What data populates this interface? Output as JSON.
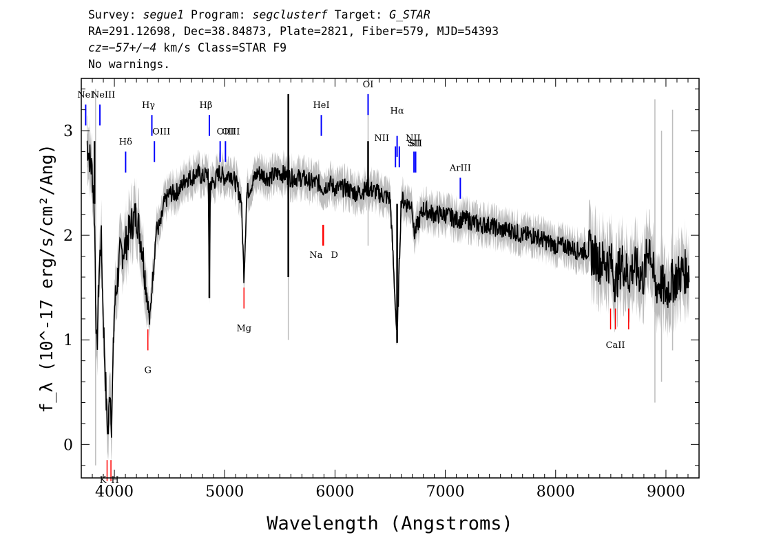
{
  "header": {
    "line1": {
      "survey_label": "Survey:",
      "survey": "segue1",
      "program_label": "Program:",
      "program": "segclusterf",
      "target_label": "Target:",
      "target": "G_STAR"
    },
    "line2": "RA=291.12698, Dec=38.84873, Plate=2821, Fiber=579, MJD=54393",
    "line3": {
      "cz": "cz=−57+/−4",
      "rest": "km/s Class=STAR F9"
    },
    "line4": "No warnings."
  },
  "chart_data": {
    "type": "line",
    "xlabel": "Wavelength (Angstroms)",
    "ylabel": "f_λ (10^-17 erg/s/cm²/Ang)",
    "xlim": [
      3700,
      9300
    ],
    "ylim": [
      -0.32,
      3.5
    ],
    "x_ticks": [
      4000,
      5000,
      6000,
      7000,
      8000,
      9000
    ],
    "y_ticks": [
      0,
      1,
      2,
      3
    ],
    "series": [
      {
        "role": "spectrum",
        "color": "#000000",
        "x": [
          3750,
          3800,
          3820,
          3840,
          3860,
          3880,
          3900,
          3930,
          3945,
          3960,
          3975,
          4000,
          4050,
          4100,
          4150,
          4200,
          4250,
          4300,
          4320,
          4340,
          4380,
          4420,
          4450,
          4500,
          4550,
          4600,
          4650,
          4700,
          4750,
          4800,
          4850,
          4861,
          4870,
          4900,
          4950,
          5000,
          5050,
          5100,
          5150,
          5175,
          5200,
          5250,
          5300,
          5400,
          5500,
          5600,
          5700,
          5800,
          5850,
          5893,
          5950,
          6000,
          6100,
          6200,
          6300,
          6400,
          6500,
          6563,
          6600,
          6650,
          6700,
          6716,
          6731,
          6800,
          6900,
          7000,
          7100,
          7200,
          7300,
          7400,
          7500,
          7600,
          7700,
          7800,
          7900,
          8000,
          8100,
          8200,
          8300,
          8400,
          8500,
          8542,
          8600,
          8662,
          8700,
          8800,
          8850,
          8900,
          8950,
          9000,
          9050,
          9100,
          9150,
          9200
        ],
        "values": [
          2.9,
          2.6,
          2.2,
          0.8,
          1.6,
          2.0,
          1.2,
          0.3,
          0.1,
          0.6,
          0.2,
          1.3,
          1.8,
          1.9,
          2.1,
          2.2,
          1.9,
          1.4,
          1.15,
          1.5,
          2.05,
          2.1,
          2.3,
          2.4,
          2.4,
          2.45,
          2.55,
          2.55,
          2.6,
          2.55,
          2.6,
          1.4,
          2.5,
          2.5,
          2.6,
          2.55,
          2.6,
          2.5,
          2.35,
          1.6,
          2.4,
          2.5,
          2.6,
          2.55,
          2.6,
          2.55,
          2.55,
          2.5,
          2.5,
          2.45,
          2.5,
          2.45,
          2.45,
          2.4,
          2.45,
          2.4,
          2.35,
          1.0,
          2.35,
          2.3,
          2.3,
          2.0,
          2.05,
          2.25,
          2.2,
          2.2,
          2.15,
          2.15,
          2.1,
          2.1,
          2.05,
          2.05,
          2.0,
          2.0,
          1.95,
          1.9,
          1.9,
          1.85,
          1.85,
          1.75,
          1.75,
          1.55,
          1.75,
          1.6,
          1.7,
          1.6,
          1.95,
          1.5,
          1.55,
          1.45,
          1.55,
          1.6,
          1.65,
          1.65
        ]
      }
    ],
    "lines_emission": [
      {
        "label": "NeI",
        "wave": 3740
      },
      {
        "label": "NeIII",
        "wave": 3869
      },
      {
        "label": "Hδ",
        "wave": 4102
      },
      {
        "label": "Hγ",
        "wave": 4340
      },
      {
        "label": "OIII",
        "wave": 4363
      },
      {
        "label": "Hβ",
        "wave": 4861
      },
      {
        "label": "OIII",
        "wave": 4959
      },
      {
        "label": "OIII",
        "wave": 5007
      },
      {
        "label": "HeI",
        "wave": 5876
      },
      {
        "label": "OI",
        "wave": 6300
      },
      {
        "label": "NII",
        "wave": 6548
      },
      {
        "label": "Hα",
        "wave": 6563
      },
      {
        "label": "NII",
        "wave": 6583
      },
      {
        "label": "SII",
        "wave": 6716
      },
      {
        "label": "SII",
        "wave": 6731
      },
      {
        "label": "ArIII",
        "wave": 7136
      }
    ],
    "lines_absorption": [
      {
        "label": "K",
        "wave": 3934
      },
      {
        "label": "H",
        "wave": 3969
      },
      {
        "label": "G",
        "wave": 4304
      },
      {
        "label": "Mg",
        "wave": 5175
      },
      {
        "label": "Na",
        "wave": 5890
      },
      {
        "label": "D",
        "wave": 5896
      },
      {
        "label": "CaII",
        "wave": 8498
      },
      {
        "label": "CaII",
        "wave": 8542
      },
      {
        "label": "CaII",
        "wave": 8662
      }
    ],
    "grid": false,
    "colors": {
      "spectrum": "#000000",
      "error": "#bdbdbd",
      "emission": "#0000ff",
      "absorption": "#ff0000"
    }
  }
}
